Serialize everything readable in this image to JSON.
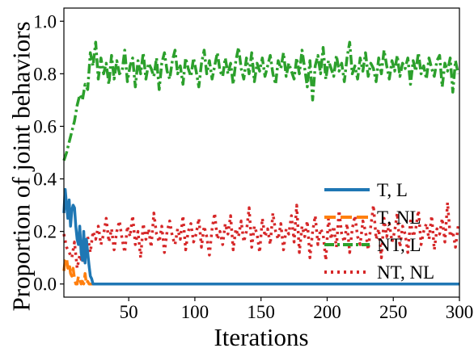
{
  "chart_data": {
    "type": "line",
    "title": "",
    "xlabel": "Iterations",
    "ylabel": "Proportion of joint behaviors",
    "xlim": [
      1,
      300
    ],
    "ylim": [
      -0.05,
      1.05
    ],
    "xticks": [
      50,
      100,
      150,
      200,
      250,
      300
    ],
    "yticks": [
      0.0,
      0.2,
      0.4,
      0.6,
      0.8,
      1.0
    ],
    "grid": false,
    "legend_position": "center-right",
    "series": [
      {
        "name": "T, L",
        "color": "#1f77b4",
        "linestyle": "solid",
        "x": [
          1,
          2,
          3,
          4,
          5,
          6,
          7,
          8,
          9,
          10,
          11,
          12,
          13,
          14,
          15,
          16,
          17,
          18,
          19,
          20,
          21,
          22,
          23,
          24,
          25,
          300
        ],
        "values": [
          0.27,
          0.36,
          0.3,
          0.25,
          0.32,
          0.22,
          0.28,
          0.3,
          0.29,
          0.22,
          0.17,
          0.15,
          0.22,
          0.12,
          0.09,
          0.2,
          0.08,
          0.17,
          0.12,
          0.07,
          0.03,
          0.02,
          0.0,
          0.0,
          0.0,
          0.0
        ]
      },
      {
        "name": "T, NL",
        "color": "#ff7f0e",
        "linestyle": "dashed",
        "x": [
          1,
          2,
          3,
          4,
          5,
          6,
          7,
          8,
          9,
          10,
          11,
          12,
          13,
          14,
          15,
          16,
          17,
          18,
          19,
          20,
          300
        ],
        "values": [
          0.05,
          0.09,
          0.1,
          0.06,
          0.08,
          0.04,
          0.03,
          0.06,
          0.02,
          0.0,
          0.0,
          0.03,
          0.02,
          0.0,
          0.01,
          0.0,
          0.04,
          0.0,
          0.01,
          0.0,
          0.0
        ]
      },
      {
        "name": "NT, L",
        "color": "#2ca02c",
        "linestyle": "dashdot",
        "x": [
          1,
          3,
          5,
          7,
          9,
          11,
          13,
          15,
          17,
          19,
          21,
          23,
          25,
          27,
          29,
          31,
          33,
          35,
          37,
          39,
          41,
          43,
          45,
          47,
          49,
          51,
          53,
          55,
          57,
          59,
          61,
          63,
          65,
          67,
          69,
          71,
          73,
          75,
          77,
          79,
          81,
          83,
          85,
          87,
          89,
          91,
          93,
          95,
          97,
          99,
          101,
          103,
          105,
          107,
          109,
          111,
          113,
          115,
          117,
          119,
          121,
          123,
          125,
          127,
          129,
          131,
          133,
          135,
          137,
          139,
          141,
          143,
          145,
          147,
          149,
          151,
          153,
          155,
          157,
          159,
          161,
          163,
          165,
          167,
          169,
          171,
          173,
          175,
          177,
          179,
          181,
          183,
          185,
          187,
          189,
          191,
          193,
          195,
          197,
          199,
          201,
          203,
          205,
          207,
          209,
          211,
          213,
          215,
          217,
          219,
          221,
          223,
          225,
          227,
          229,
          231,
          233,
          235,
          237,
          239,
          241,
          243,
          245,
          247,
          249,
          251,
          253,
          255,
          257,
          259,
          261,
          263,
          265,
          267,
          269,
          271,
          273,
          275,
          277,
          279,
          281,
          283,
          285,
          287,
          289,
          291,
          293,
          295,
          297,
          299
        ],
        "values": [
          0.47,
          0.5,
          0.54,
          0.58,
          0.62,
          0.68,
          0.72,
          0.7,
          0.76,
          0.74,
          0.88,
          0.83,
          0.92,
          0.78,
          0.86,
          0.8,
          0.84,
          0.76,
          0.87,
          0.78,
          0.85,
          0.8,
          0.81,
          0.89,
          0.77,
          0.83,
          0.86,
          0.75,
          0.85,
          0.8,
          0.88,
          0.78,
          0.84,
          0.82,
          0.79,
          0.86,
          0.74,
          0.84,
          0.88,
          0.81,
          0.78,
          0.85,
          0.89,
          0.8,
          0.83,
          0.76,
          0.86,
          0.82,
          0.79,
          0.86,
          0.81,
          0.75,
          0.84,
          0.89,
          0.8,
          0.85,
          0.78,
          0.83,
          0.88,
          0.81,
          0.79,
          0.86,
          0.8,
          0.84,
          0.76,
          0.85,
          0.9,
          0.82,
          0.78,
          0.86,
          0.8,
          0.88,
          0.77,
          0.84,
          0.81,
          0.86,
          0.79,
          0.83,
          0.87,
          0.8,
          0.76,
          0.85,
          0.82,
          0.88,
          0.79,
          0.84,
          0.81,
          0.78,
          0.86,
          0.8,
          0.89,
          0.82,
          0.75,
          0.85,
          0.7,
          0.83,
          0.87,
          0.8,
          0.9,
          0.78,
          0.85,
          0.82,
          0.79,
          0.87,
          0.81,
          0.84,
          0.77,
          0.86,
          0.92,
          0.8,
          0.83,
          0.78,
          0.86,
          0.81,
          0.88,
          0.79,
          0.84,
          0.82,
          0.77,
          0.86,
          0.8,
          0.89,
          0.83,
          0.78,
          0.85,
          0.81,
          0.87,
          0.79,
          0.84,
          0.82,
          0.86,
          0.76,
          0.85,
          0.81,
          0.88,
          0.8,
          0.83,
          0.78,
          0.86,
          0.82,
          0.79,
          0.85,
          0.87,
          0.75,
          0.84,
          0.81,
          0.86,
          0.73,
          0.85,
          0.8
        ]
      },
      {
        "name": "NT, NL",
        "color": "#d62728",
        "linestyle": "dotted",
        "x": [
          1,
          3,
          5,
          7,
          9,
          11,
          13,
          15,
          17,
          19,
          21,
          23,
          25,
          27,
          29,
          31,
          33,
          35,
          37,
          39,
          41,
          43,
          45,
          47,
          49,
          51,
          53,
          55,
          57,
          59,
          61,
          63,
          65,
          67,
          69,
          71,
          73,
          75,
          77,
          79,
          81,
          83,
          85,
          87,
          89,
          91,
          93,
          95,
          97,
          99,
          101,
          103,
          105,
          107,
          109,
          111,
          113,
          115,
          117,
          119,
          121,
          123,
          125,
          127,
          129,
          131,
          133,
          135,
          137,
          139,
          141,
          143,
          145,
          147,
          149,
          151,
          153,
          155,
          157,
          159,
          161,
          163,
          165,
          167,
          169,
          171,
          173,
          175,
          177,
          179,
          181,
          183,
          185,
          187,
          189,
          191,
          193,
          195,
          197,
          199,
          201,
          203,
          205,
          207,
          209,
          211,
          213,
          215,
          217,
          219,
          221,
          223,
          225,
          227,
          229,
          231,
          233,
          235,
          237,
          239,
          241,
          243,
          245,
          247,
          249,
          251,
          253,
          255,
          257,
          259,
          261,
          263,
          265,
          267,
          269,
          271,
          273,
          275,
          277,
          279,
          281,
          283,
          285,
          287,
          289,
          291,
          293,
          295,
          297,
          299
        ],
        "values": [
          0.19,
          0.14,
          0.12,
          0.1,
          0.16,
          0.06,
          0.11,
          0.08,
          0.14,
          0.18,
          0.12,
          0.2,
          0.17,
          0.22,
          0.15,
          0.19,
          0.25,
          0.16,
          0.21,
          0.13,
          0.2,
          0.24,
          0.17,
          0.12,
          0.22,
          0.18,
          0.26,
          0.15,
          0.2,
          0.1,
          0.23,
          0.17,
          0.21,
          0.14,
          0.27,
          0.19,
          0.16,
          0.22,
          0.12,
          0.2,
          0.24,
          0.18,
          0.15,
          0.21,
          0.17,
          0.26,
          0.13,
          0.2,
          0.23,
          0.16,
          0.19,
          0.25,
          0.14,
          0.22,
          0.18,
          0.11,
          0.21,
          0.27,
          0.17,
          0.2,
          0.15,
          0.23,
          0.19,
          0.26,
          0.13,
          0.21,
          0.18,
          0.24,
          0.16,
          0.2,
          0.29,
          0.14,
          0.22,
          0.19,
          0.12,
          0.25,
          0.18,
          0.21,
          0.15,
          0.27,
          0.2,
          0.17,
          0.23,
          0.13,
          0.21,
          0.19,
          0.26,
          0.16,
          0.3,
          0.12,
          0.22,
          0.18,
          0.24,
          0.1,
          0.2,
          0.26,
          0.15,
          0.21,
          0.19,
          0.09,
          0.25,
          0.17,
          0.22,
          0.14,
          0.28,
          0.19,
          0.16,
          0.23,
          0.12,
          0.21,
          0.26,
          0.18,
          0.15,
          0.24,
          0.2,
          0.13,
          0.22,
          0.3,
          0.17,
          0.21,
          0.1,
          0.25,
          0.18,
          0.23,
          0.16,
          0.2,
          0.27,
          0.14,
          0.22,
          0.19,
          0.12,
          0.24,
          0.18,
          0.21,
          0.28,
          0.15,
          0.2,
          0.23,
          0.17,
          0.26,
          0.13,
          0.21,
          0.19,
          0.25,
          0.16,
          0.31,
          0.18,
          0.2,
          0.14,
          0.22
        ]
      }
    ]
  }
}
